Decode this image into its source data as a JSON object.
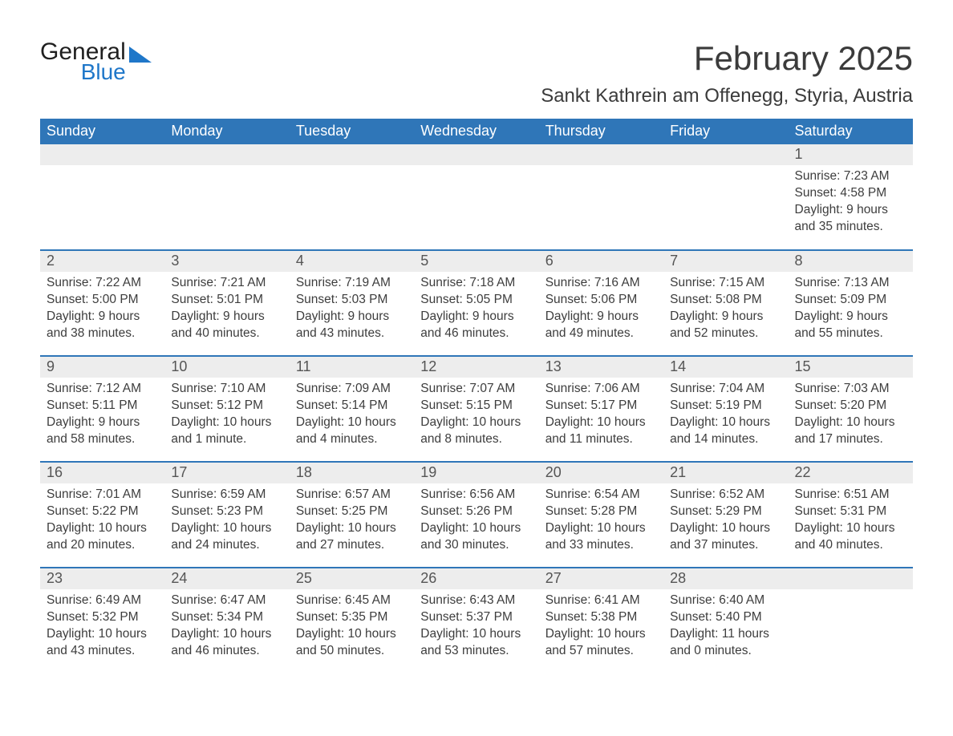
{
  "brand": {
    "part1": "General",
    "part2": "Blue",
    "accent_color": "#1f77c9"
  },
  "title": "February 2025",
  "location": "Sankt Kathrein am Offenegg, Styria, Austria",
  "colors": {
    "header_bg": "#2f76b8",
    "header_text": "#ffffff",
    "row_divider": "#2f76b8",
    "daynum_bg": "#ededed",
    "body_text": "#3d3d3d",
    "page_bg": "#ffffff"
  },
  "weekdays": [
    "Sunday",
    "Monday",
    "Tuesday",
    "Wednesday",
    "Thursday",
    "Friday",
    "Saturday"
  ],
  "labels": {
    "sunrise": "Sunrise",
    "sunset": "Sunset",
    "daylight": "Daylight"
  },
  "weeks": [
    [
      null,
      null,
      null,
      null,
      null,
      null,
      {
        "n": 1,
        "sunrise": "7:23 AM",
        "sunset": "4:58 PM",
        "daylight": "9 hours and 35 minutes."
      }
    ],
    [
      {
        "n": 2,
        "sunrise": "7:22 AM",
        "sunset": "5:00 PM",
        "daylight": "9 hours and 38 minutes."
      },
      {
        "n": 3,
        "sunrise": "7:21 AM",
        "sunset": "5:01 PM",
        "daylight": "9 hours and 40 minutes."
      },
      {
        "n": 4,
        "sunrise": "7:19 AM",
        "sunset": "5:03 PM",
        "daylight": "9 hours and 43 minutes."
      },
      {
        "n": 5,
        "sunrise": "7:18 AM",
        "sunset": "5:05 PM",
        "daylight": "9 hours and 46 minutes."
      },
      {
        "n": 6,
        "sunrise": "7:16 AM",
        "sunset": "5:06 PM",
        "daylight": "9 hours and 49 minutes."
      },
      {
        "n": 7,
        "sunrise": "7:15 AM",
        "sunset": "5:08 PM",
        "daylight": "9 hours and 52 minutes."
      },
      {
        "n": 8,
        "sunrise": "7:13 AM",
        "sunset": "5:09 PM",
        "daylight": "9 hours and 55 minutes."
      }
    ],
    [
      {
        "n": 9,
        "sunrise": "7:12 AM",
        "sunset": "5:11 PM",
        "daylight": "9 hours and 58 minutes."
      },
      {
        "n": 10,
        "sunrise": "7:10 AM",
        "sunset": "5:12 PM",
        "daylight": "10 hours and 1 minute."
      },
      {
        "n": 11,
        "sunrise": "7:09 AM",
        "sunset": "5:14 PM",
        "daylight": "10 hours and 4 minutes."
      },
      {
        "n": 12,
        "sunrise": "7:07 AM",
        "sunset": "5:15 PM",
        "daylight": "10 hours and 8 minutes."
      },
      {
        "n": 13,
        "sunrise": "7:06 AM",
        "sunset": "5:17 PM",
        "daylight": "10 hours and 11 minutes."
      },
      {
        "n": 14,
        "sunrise": "7:04 AM",
        "sunset": "5:19 PM",
        "daylight": "10 hours and 14 minutes."
      },
      {
        "n": 15,
        "sunrise": "7:03 AM",
        "sunset": "5:20 PM",
        "daylight": "10 hours and 17 minutes."
      }
    ],
    [
      {
        "n": 16,
        "sunrise": "7:01 AM",
        "sunset": "5:22 PM",
        "daylight": "10 hours and 20 minutes."
      },
      {
        "n": 17,
        "sunrise": "6:59 AM",
        "sunset": "5:23 PM",
        "daylight": "10 hours and 24 minutes."
      },
      {
        "n": 18,
        "sunrise": "6:57 AM",
        "sunset": "5:25 PM",
        "daylight": "10 hours and 27 minutes."
      },
      {
        "n": 19,
        "sunrise": "6:56 AM",
        "sunset": "5:26 PM",
        "daylight": "10 hours and 30 minutes."
      },
      {
        "n": 20,
        "sunrise": "6:54 AM",
        "sunset": "5:28 PM",
        "daylight": "10 hours and 33 minutes."
      },
      {
        "n": 21,
        "sunrise": "6:52 AM",
        "sunset": "5:29 PM",
        "daylight": "10 hours and 37 minutes."
      },
      {
        "n": 22,
        "sunrise": "6:51 AM",
        "sunset": "5:31 PM",
        "daylight": "10 hours and 40 minutes."
      }
    ],
    [
      {
        "n": 23,
        "sunrise": "6:49 AM",
        "sunset": "5:32 PM",
        "daylight": "10 hours and 43 minutes."
      },
      {
        "n": 24,
        "sunrise": "6:47 AM",
        "sunset": "5:34 PM",
        "daylight": "10 hours and 46 minutes."
      },
      {
        "n": 25,
        "sunrise": "6:45 AM",
        "sunset": "5:35 PM",
        "daylight": "10 hours and 50 minutes."
      },
      {
        "n": 26,
        "sunrise": "6:43 AM",
        "sunset": "5:37 PM",
        "daylight": "10 hours and 53 minutes."
      },
      {
        "n": 27,
        "sunrise": "6:41 AM",
        "sunset": "5:38 PM",
        "daylight": "10 hours and 57 minutes."
      },
      {
        "n": 28,
        "sunrise": "6:40 AM",
        "sunset": "5:40 PM",
        "daylight": "11 hours and 0 minutes."
      },
      null
    ]
  ]
}
